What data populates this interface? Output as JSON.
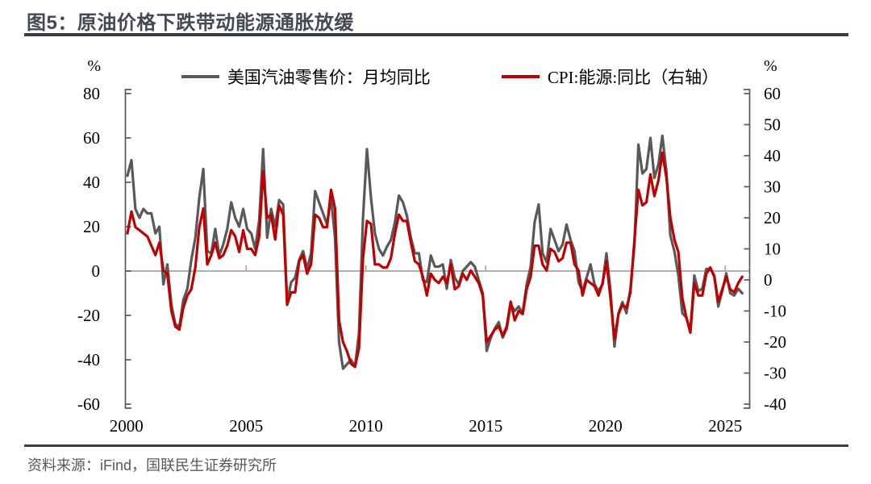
{
  "figure": {
    "title": "图5：原油价格下跌带动能源通胀放缓",
    "source": "资料来源：iFind，国联民生证券研究所"
  },
  "colors": {
    "gasoline_line": "#595959",
    "cpi_energy_line": "#C00000",
    "axis": "#595959",
    "gridline": "#a6a6a6",
    "title_text": "#454a52",
    "divider": "#383d46",
    "source_text": "#595959"
  },
  "chart_data": {
    "type": "line",
    "title": "图5：原油价格下跌带动能源通胀放缓",
    "grid": "horizontal zero line only",
    "legend_position": "top",
    "x_start": 2000.042,
    "x_step_years": 0.1666667,
    "x_ticks": [
      2000,
      2005,
      2010,
      2015,
      2020,
      2025
    ],
    "left_axis": {
      "unit": "%",
      "range": [
        -60,
        80
      ],
      "ticks": [
        80,
        60,
        40,
        20,
        0,
        -20,
        -40,
        -60
      ]
    },
    "right_axis": {
      "unit": "%",
      "range": [
        -40,
        60
      ],
      "ticks": [
        60,
        50,
        40,
        30,
        20,
        10,
        0,
        -10,
        -20,
        -30,
        -40
      ]
    },
    "series": [
      {
        "name": "美国汽油零售价：月均同比",
        "axis": "left",
        "color": "#595959",
        "values": [
          43,
          50,
          28,
          24,
          28,
          26,
          26,
          17,
          20,
          -6,
          3,
          -15,
          -24,
          -25,
          -13,
          -8,
          5,
          15,
          33,
          46,
          9,
          8,
          19,
          7,
          12,
          19,
          31,
          24,
          20,
          28,
          19,
          17,
          10,
          23,
          55,
          15,
          28,
          20,
          32,
          30,
          -14,
          -5,
          -3,
          5,
          9,
          1,
          8,
          36,
          31,
          26,
          21,
          33,
          15,
          -32,
          -44,
          -42,
          -40,
          -43,
          -28,
          24,
          55,
          33,
          17,
          10,
          7,
          11,
          14,
          22,
          34,
          31,
          25,
          15,
          8,
          8,
          -4,
          -5,
          7,
          2,
          2,
          3,
          -8,
          5,
          -3,
          -6,
          0,
          2,
          4,
          2,
          -4,
          -10,
          -36,
          -30,
          -26,
          -23,
          -30,
          -26,
          -15,
          -18,
          -16,
          -19,
          -6,
          2,
          22,
          30,
          8,
          4,
          19,
          14,
          9,
          12,
          21,
          14,
          9,
          -5,
          -9,
          -3,
          3,
          -6,
          -9,
          -6,
          8,
          -9,
          -34,
          -19,
          -14,
          -19,
          -8,
          12,
          57,
          44,
          46,
          60,
          42,
          48,
          61,
          45,
          16,
          9,
          -2,
          -19,
          -21,
          -27,
          -2,
          -9,
          -8,
          1,
          1,
          -2,
          -16,
          -9,
          -1,
          -10,
          -11,
          -8,
          -10
        ]
      },
      {
        "name": "CPI:能源:同比（右轴）",
        "axis": "right",
        "color": "#C00000",
        "values": [
          15,
          22,
          17,
          16,
          15,
          14,
          11,
          8,
          12,
          3,
          2,
          -10,
          -15,
          -16,
          -9,
          -5,
          -3,
          4,
          17,
          23,
          5,
          8,
          12,
          7,
          8,
          11,
          16,
          14,
          9,
          16,
          10,
          10,
          8,
          14,
          35,
          20,
          21,
          13,
          24,
          21,
          -8,
          -4,
          -4,
          6,
          8,
          2,
          5,
          21,
          20,
          17,
          17,
          29,
          23,
          -13,
          -20,
          -23,
          -27,
          -28,
          -22,
          7,
          19,
          18,
          5,
          5,
          4,
          4,
          7,
          15,
          21,
          19,
          19,
          12,
          6,
          5,
          1,
          -5,
          2,
          0,
          -1,
          1,
          -1,
          5,
          -3,
          -2,
          2,
          0,
          3,
          1,
          -1,
          -5,
          -20,
          -18,
          -16,
          -15,
          -18,
          -15,
          -7,
          -13,
          -10,
          -11,
          -3,
          1,
          11,
          11,
          5,
          3,
          10,
          9,
          6,
          7,
          12,
          12,
          5,
          3,
          -5,
          0,
          -1,
          -2,
          -5,
          -1,
          6,
          -6,
          -19,
          -11,
          -8,
          -9,
          -4,
          13,
          29,
          24,
          25,
          34,
          27,
          32,
          41,
          33,
          20,
          13,
          9,
          -6,
          -12,
          -17,
          -1,
          -5,
          -5,
          2,
          4,
          1,
          -7,
          -3,
          1,
          -3,
          -4,
          -1,
          1
        ]
      }
    ]
  }
}
